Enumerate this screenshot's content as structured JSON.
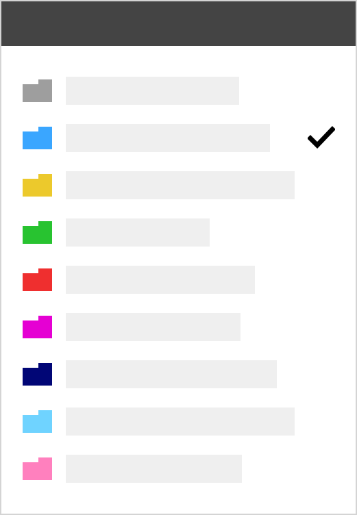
{
  "header": {
    "title": ""
  },
  "folders": [
    {
      "label": "",
      "color": "#9e9e9e",
      "icon": "folder-icon",
      "selected": false
    },
    {
      "label": "",
      "color": "#3aa6ff",
      "icon": "folder-icon",
      "selected": true
    },
    {
      "label": "",
      "color": "#ecc92c",
      "icon": "folder-icon",
      "selected": false
    },
    {
      "label": "",
      "color": "#28c330",
      "icon": "folder-icon",
      "selected": false
    },
    {
      "label": "",
      "color": "#ef2f2f",
      "icon": "folder-icon",
      "selected": false
    },
    {
      "label": "",
      "color": "#e500d3",
      "icon": "folder-icon",
      "selected": false
    },
    {
      "label": "",
      "color": "#010676",
      "icon": "folder-icon",
      "selected": false
    },
    {
      "label": "",
      "color": "#6fd3ff",
      "icon": "folder-icon",
      "selected": false
    },
    {
      "label": "",
      "color": "#ff80be",
      "icon": "folder-icon",
      "selected": false
    }
  ],
  "selection_indicator": {
    "icon": "checkmark-icon",
    "color": "#000000"
  }
}
